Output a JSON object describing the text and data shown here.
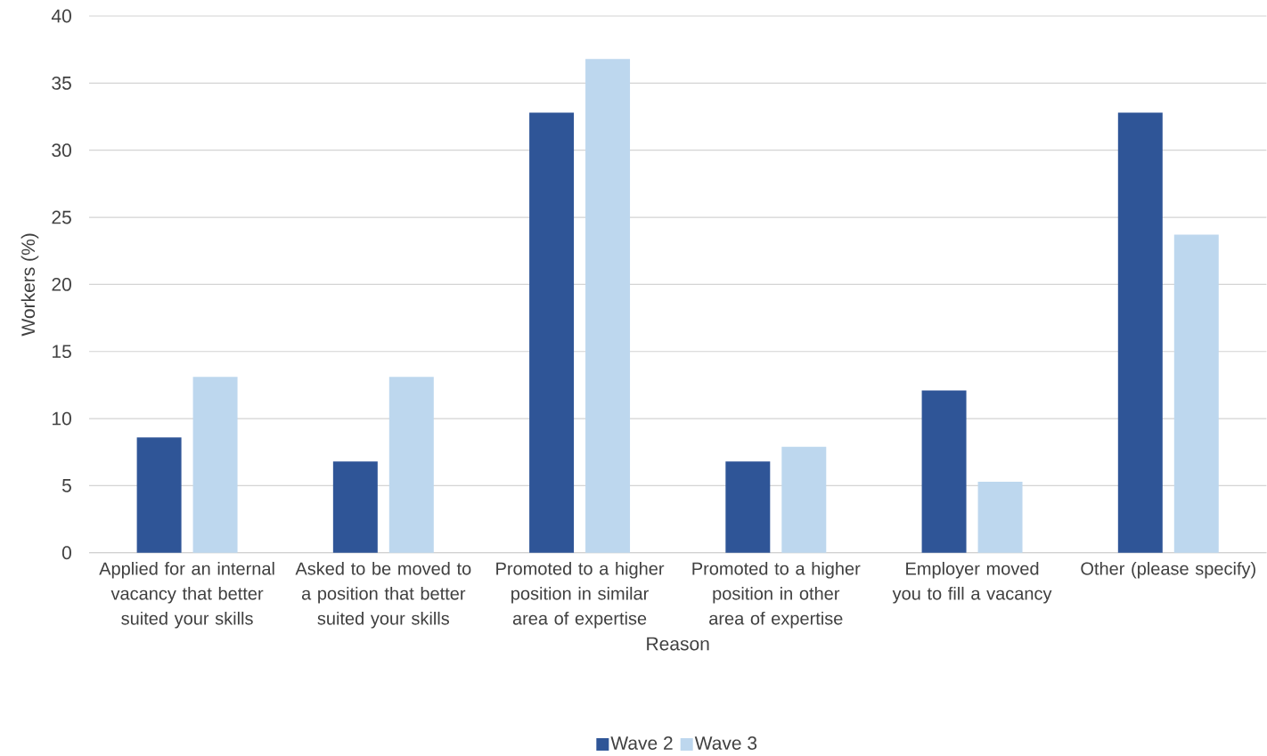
{
  "chart_data": {
    "type": "bar",
    "xlabel": "Reason",
    "ylabel": "Workers (%)",
    "categories": [
      "Applied for an internal vacancy that better suited your skills",
      "Asked to be moved to a position that better suited your skills",
      "Promoted to a higher position in similar area of expertise",
      "Promoted to a higher position in other area of expertise",
      "Employer moved you to fill a vacancy",
      "Other (please specify)"
    ],
    "series": [
      {
        "name": "Wave 2",
        "color": "#2f5597",
        "values": [
          8.6,
          6.8,
          32.8,
          6.8,
          12.1,
          32.8
        ]
      },
      {
        "name": "Wave 3",
        "color": "#bdd7ee",
        "values": [
          13.1,
          13.1,
          36.8,
          7.9,
          5.3,
          23.7
        ]
      }
    ],
    "ylim": [
      0,
      40
    ],
    "yticks": [
      0,
      5,
      10,
      15,
      20,
      25,
      30,
      35,
      40
    ],
    "grid": "y",
    "legend": "bottom"
  }
}
